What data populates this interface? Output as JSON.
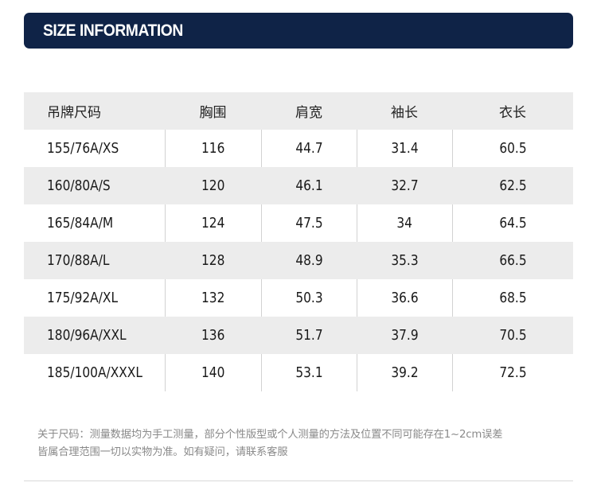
{
  "header": {
    "title": "SIZE INFORMATION"
  },
  "table": {
    "columns": [
      "吊牌尺码",
      "胸围",
      "肩宽",
      "袖长",
      "衣长"
    ],
    "rows": [
      [
        "155/76A/XS",
        "116",
        "44.7",
        "31.4",
        "60.5"
      ],
      [
        "160/80A/S",
        "120",
        "46.1",
        "32.7",
        "62.5"
      ],
      [
        "165/84A/M",
        "124",
        "47.5",
        "34",
        "64.5"
      ],
      [
        "170/88A/L",
        "128",
        "48.9",
        "35.3",
        "66.5"
      ],
      [
        "175/92A/XL",
        "132",
        "50.3",
        "36.6",
        "68.5"
      ],
      [
        "180/96A/XXL",
        "136",
        "51.7",
        "37.9",
        "70.5"
      ],
      [
        "185/100A/XXXL",
        "140",
        "53.1",
        "39.2",
        "72.5"
      ]
    ]
  },
  "note": {
    "line1": "关于尺码：测量数据均为手工测量，部分个性版型或个人测量的方法及位置不同可能存在1~2cm误差",
    "line2": "皆属合理范围一切以实物为准。如有疑问，请联系客服"
  },
  "colors": {
    "header_bg": "#0f2347",
    "stripe": "#ececec",
    "note_text": "#8a8a8a"
  }
}
